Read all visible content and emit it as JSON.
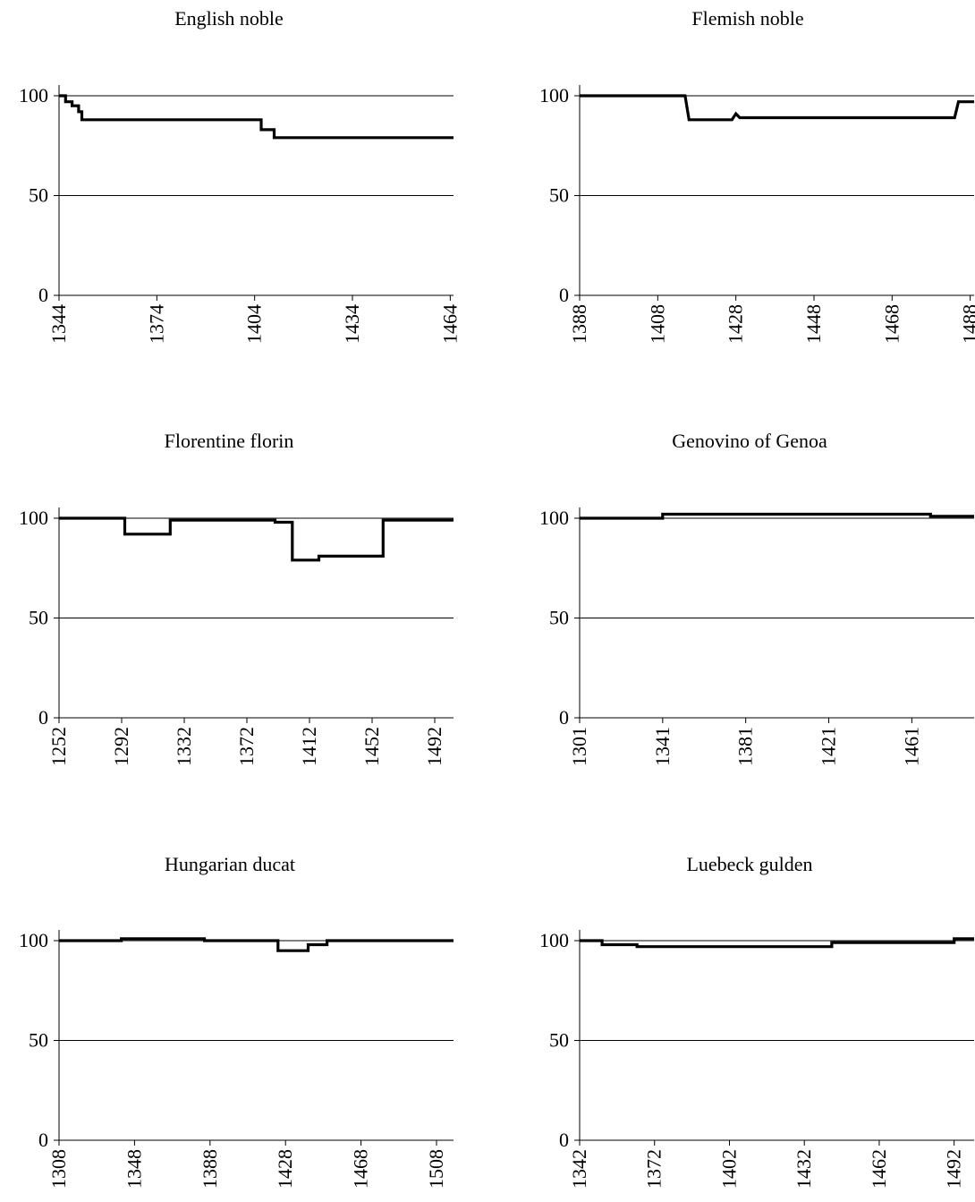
{
  "chart_data": [
    {
      "type": "line",
      "title": "English noble",
      "xlim": [
        1344,
        1465
      ],
      "ylim": [
        0,
        100
      ],
      "yticks": [
        0,
        50,
        100
      ],
      "xticks": [
        1344,
        1374,
        1404,
        1434,
        1464
      ],
      "xticklabels": [
        "1344",
        "1374",
        "1404",
        "1434",
        "1464"
      ],
      "grid": "horizontal",
      "series": [
        {
          "x": [
            1344,
            1346,
            1346,
            1348,
            1348,
            1350,
            1350,
            1351,
            1351,
            1406,
            1406,
            1410,
            1410,
            1465
          ],
          "y": [
            100,
            100,
            97,
            97,
            95,
            95,
            92,
            92,
            88,
            88,
            83,
            83,
            79,
            79
          ]
        }
      ]
    },
    {
      "type": "line",
      "title": "Flemish noble",
      "xlim": [
        1388,
        1489
      ],
      "ylim": [
        0,
        100
      ],
      "yticks": [
        0,
        50,
        100
      ],
      "xticks": [
        1388,
        1408,
        1428,
        1448,
        1468,
        1488
      ],
      "xticklabels": [
        "1388",
        "1408",
        "1428",
        "1448",
        "1468",
        "1488"
      ],
      "grid": "horizontal",
      "series": [
        {
          "x": [
            1388,
            1415,
            1416,
            1427,
            1428,
            1429,
            1484,
            1485,
            1489
          ],
          "y": [
            100,
            100,
            88,
            88,
            91,
            89,
            89,
            97,
            97
          ]
        }
      ]
    },
    {
      "type": "line",
      "title": "Florentine florin",
      "xlim": [
        1252,
        1504
      ],
      "ylim": [
        0,
        100
      ],
      "yticks": [
        0,
        50,
        100
      ],
      "xticks": [
        1252,
        1292,
        1332,
        1372,
        1412,
        1452,
        1492
      ],
      "xticklabels": [
        "1252",
        "1292",
        "1332",
        "1372",
        "1412",
        "1452",
        "1492"
      ],
      "grid": "horizontal",
      "series": [
        {
          "x": [
            1252,
            1294,
            1294,
            1323,
            1323,
            1390,
            1390,
            1401,
            1401,
            1418,
            1418,
            1459,
            1459,
            1504
          ],
          "y": [
            100,
            100,
            92,
            92,
            99,
            99,
            98,
            98,
            79,
            79,
            81,
            81,
            99,
            99
          ]
        }
      ]
    },
    {
      "type": "line",
      "title": "Genovino of Genoa",
      "xlim": [
        1301,
        1491
      ],
      "ylim": [
        0,
        100
      ],
      "yticks": [
        0,
        50,
        100
      ],
      "xticks": [
        1301,
        1341,
        1381,
        1421,
        1461
      ],
      "xticklabels": [
        "1301",
        "1341",
        "1381",
        "1421",
        "1461"
      ],
      "grid": "horizontal",
      "series": [
        {
          "x": [
            1301,
            1341,
            1341,
            1470,
            1470,
            1491
          ],
          "y": [
            100,
            100,
            102,
            102,
            101,
            101
          ]
        }
      ]
    },
    {
      "type": "line",
      "title": "Hungarian ducat",
      "xlim": [
        1308,
        1517
      ],
      "ylim": [
        0,
        100
      ],
      "yticks": [
        0,
        50,
        100
      ],
      "xticks": [
        1308,
        1348,
        1388,
        1428,
        1468,
        1508
      ],
      "xticklabels": [
        "1308",
        "1348",
        "1388",
        "1428",
        "1468",
        "1508"
      ],
      "grid": "horizontal",
      "series": [
        {
          "x": [
            1308,
            1341,
            1341,
            1385,
            1385,
            1424,
            1424,
            1440,
            1440,
            1450,
            1450,
            1517
          ],
          "y": [
            100,
            100,
            101,
            101,
            100,
            100,
            95,
            95,
            98,
            98,
            100,
            100
          ]
        }
      ]
    },
    {
      "type": "line",
      "title": "Luebeck gulden",
      "xlim": [
        1342,
        1500
      ],
      "ylim": [
        0,
        100
      ],
      "yticks": [
        0,
        50,
        100
      ],
      "xticks": [
        1342,
        1372,
        1402,
        1432,
        1462,
        1492
      ],
      "xticklabels": [
        "1342",
        "1372",
        "1402",
        "1432",
        "1462",
        "1492"
      ],
      "grid": "horizontal",
      "series": [
        {
          "x": [
            1342,
            1351,
            1351,
            1365,
            1365,
            1443,
            1443,
            1492,
            1492,
            1500
          ],
          "y": [
            100,
            100,
            98,
            98,
            97,
            97,
            99,
            99,
            101,
            101
          ]
        }
      ]
    }
  ]
}
